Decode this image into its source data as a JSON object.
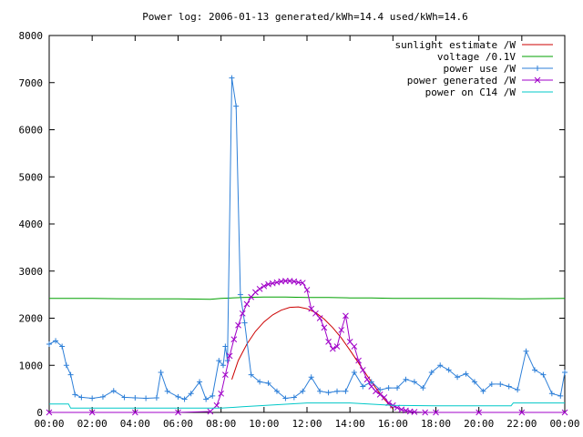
{
  "chart_data": {
    "type": "line",
    "title": "Power log: 2006-01-13 generated/kWh=14.4 used/kWh=14.6",
    "xlabel": "",
    "ylabel": "",
    "xlim": [
      0,
      24
    ],
    "ylim": [
      0,
      8000
    ],
    "grid": false,
    "legend_position": "top-right",
    "x_ticks": [
      {
        "value": 0,
        "label": "00:00"
      },
      {
        "value": 2,
        "label": "02:00"
      },
      {
        "value": 4,
        "label": "04:00"
      },
      {
        "value": 6,
        "label": "06:00"
      },
      {
        "value": 8,
        "label": "08:00"
      },
      {
        "value": 10,
        "label": "10:00"
      },
      {
        "value": 12,
        "label": "12:00"
      },
      {
        "value": 14,
        "label": "14:00"
      },
      {
        "value": 16,
        "label": "16:00"
      },
      {
        "value": 18,
        "label": "18:00"
      },
      {
        "value": 20,
        "label": "20:00"
      },
      {
        "value": 22,
        "label": "22:00"
      },
      {
        "value": 24,
        "label": "00:00"
      }
    ],
    "y_ticks": [
      {
        "value": 0,
        "label": "0"
      },
      {
        "value": 1000,
        "label": "1000"
      },
      {
        "value": 2000,
        "label": "2000"
      },
      {
        "value": 3000,
        "label": "3000"
      },
      {
        "value": 4000,
        "label": "4000"
      },
      {
        "value": 5000,
        "label": "5000"
      },
      {
        "value": 6000,
        "label": "6000"
      },
      {
        "value": 7000,
        "label": "7000"
      },
      {
        "value": 8000,
        "label": "8000"
      }
    ],
    "series": [
      {
        "name": "sunlight estimate /W",
        "color": "#cc0000",
        "marker": "none",
        "x": [
          8.5,
          8.8,
          9.2,
          9.6,
          10.0,
          10.4,
          10.8,
          11.2,
          11.6,
          12.0,
          12.4,
          12.8,
          13.2,
          13.6,
          14.0,
          14.4,
          14.8,
          15.2,
          15.6,
          16.0
        ],
        "y": [
          700,
          1100,
          1450,
          1720,
          1920,
          2070,
          2170,
          2230,
          2240,
          2200,
          2120,
          1980,
          1800,
          1580,
          1320,
          1050,
          780,
          520,
          280,
          80
        ]
      },
      {
        "name": "voltage /0.1V",
        "color": "#00a000",
        "marker": "none",
        "x": [
          0,
          2,
          4,
          6,
          7.5,
          8.0,
          9.0,
          10.0,
          11.0,
          12.0,
          13.0,
          14.0,
          15.0,
          16.0,
          17.0,
          18.0,
          20.0,
          22.0,
          24.0
        ],
        "y": [
          2420,
          2420,
          2410,
          2410,
          2400,
          2420,
          2440,
          2450,
          2450,
          2440,
          2440,
          2430,
          2430,
          2420,
          2420,
          2420,
          2420,
          2410,
          2420
        ]
      },
      {
        "name": "power use /W",
        "color": "#2d7fd8",
        "marker": "plus",
        "x": [
          0.0,
          0.3,
          0.6,
          0.8,
          1.0,
          1.2,
          1.5,
          2.0,
          2.5,
          3.0,
          3.5,
          4.0,
          4.5,
          5.0,
          5.2,
          5.5,
          6.0,
          6.3,
          6.6,
          7.0,
          7.3,
          7.6,
          7.9,
          8.1,
          8.2,
          8.3,
          8.5,
          8.7,
          8.9,
          9.1,
          9.4,
          9.8,
          10.2,
          10.6,
          11.0,
          11.4,
          11.8,
          12.2,
          12.6,
          13.0,
          13.4,
          13.8,
          14.2,
          14.6,
          15.0,
          15.4,
          15.8,
          16.2,
          16.6,
          17.0,
          17.4,
          17.8,
          18.2,
          18.6,
          19.0,
          19.4,
          19.8,
          20.2,
          20.6,
          21.0,
          21.4,
          21.8,
          22.2,
          22.6,
          23.0,
          23.4,
          23.8,
          24.0
        ],
        "y": [
          1450,
          1520,
          1400,
          1000,
          800,
          380,
          320,
          300,
          330,
          460,
          320,
          310,
          300,
          310,
          850,
          450,
          330,
          280,
          400,
          650,
          280,
          350,
          1100,
          1000,
          1400,
          1100,
          7100,
          6500,
          2500,
          1900,
          800,
          650,
          620,
          450,
          300,
          320,
          450,
          750,
          450,
          420,
          450,
          450,
          850,
          550,
          650,
          480,
          520,
          520,
          700,
          650,
          520,
          850,
          1000,
          900,
          750,
          820,
          650,
          450,
          600,
          600,
          550,
          480,
          1300,
          900,
          800,
          400,
          350,
          850
        ]
      },
      {
        "name": "power generated /W",
        "color": "#a000c8",
        "marker": "cross",
        "x": [
          0.0,
          2.0,
          4.0,
          6.0,
          7.5,
          7.8,
          8.0,
          8.2,
          8.4,
          8.6,
          8.8,
          9.0,
          9.2,
          9.4,
          9.6,
          9.8,
          10.0,
          10.2,
          10.4,
          10.6,
          10.8,
          11.0,
          11.2,
          11.4,
          11.6,
          11.8,
          12.0,
          12.2,
          12.4,
          12.6,
          12.8,
          13.0,
          13.2,
          13.4,
          13.6,
          13.8,
          14.0,
          14.2,
          14.4,
          14.6,
          14.8,
          15.0,
          15.2,
          15.4,
          15.6,
          15.8,
          16.0,
          16.2,
          16.4,
          16.6,
          16.8,
          17.0,
          17.5,
          18.0,
          20.0,
          22.0,
          24.0
        ],
        "y": [
          0,
          0,
          0,
          0,
          20,
          150,
          400,
          800,
          1200,
          1550,
          1850,
          2100,
          2300,
          2450,
          2550,
          2620,
          2680,
          2720,
          2740,
          2760,
          2780,
          2790,
          2790,
          2780,
          2760,
          2750,
          2600,
          2200,
          2100,
          2000,
          1800,
          1500,
          1350,
          1400,
          1750,
          2050,
          1500,
          1400,
          1100,
          900,
          700,
          550,
          450,
          380,
          320,
          200,
          150,
          100,
          60,
          40,
          20,
          10,
          0,
          0,
          0,
          0,
          0
        ]
      },
      {
        "name": "power on C14 /W",
        "color": "#00c8c8",
        "marker": "none",
        "x": [
          0.0,
          0.9,
          1.0,
          8.0,
          9.0,
          12.0,
          14.0,
          16.0,
          18.0,
          20.0,
          21.5,
          21.6,
          24.0
        ],
        "y": [
          180,
          180,
          90,
          90,
          120,
          200,
          200,
          150,
          140,
          140,
          140,
          200,
          200
        ]
      }
    ]
  }
}
